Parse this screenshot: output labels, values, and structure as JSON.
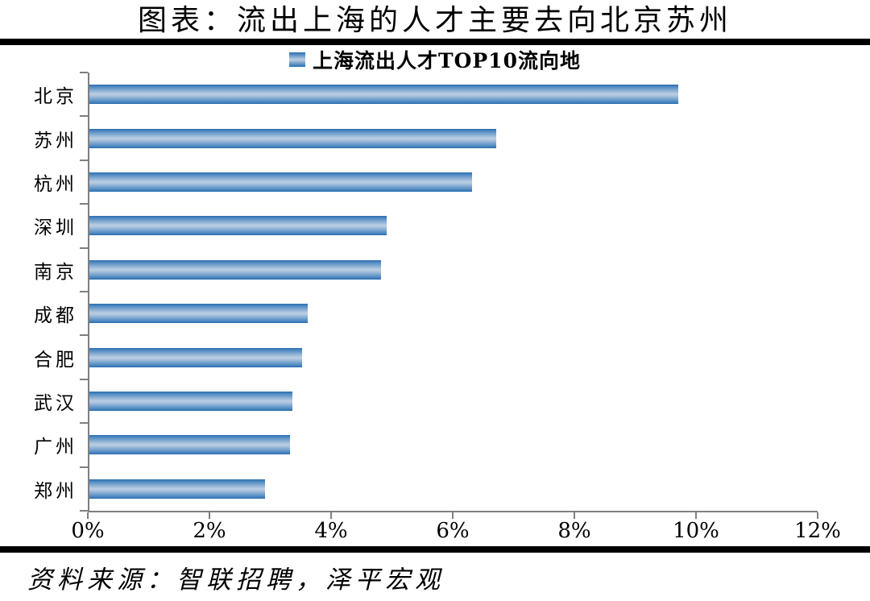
{
  "title": "图表：流出上海的人才主要去向北京苏州",
  "source": "资料来源：智联招聘，泽平宏观",
  "chart_data": {
    "type": "bar",
    "orientation": "horizontal",
    "title": "上海流出人才TOP10流向地",
    "legend": "上海流出人才TOP10流向地",
    "legend_position": "top-center",
    "categories": [
      "北京",
      "苏州",
      "杭州",
      "深圳",
      "南京",
      "成都",
      "合肥",
      "武汉",
      "广州",
      "郑州"
    ],
    "values": [
      9.7,
      6.7,
      6.3,
      4.9,
      4.8,
      3.6,
      3.5,
      3.35,
      3.3,
      2.9
    ],
    "unit": "%",
    "xlabel": "",
    "ylabel": "",
    "xlim": [
      0,
      12
    ],
    "x_ticks": [
      "0%",
      "2%",
      "4%",
      "6%",
      "8%",
      "10%",
      "12%"
    ],
    "grid": false,
    "colors": {
      "bar_edge": "#2a6cae",
      "bar_light": "#bccfe3",
      "axis": "#7f7f7f",
      "rule": "#000000"
    }
  }
}
